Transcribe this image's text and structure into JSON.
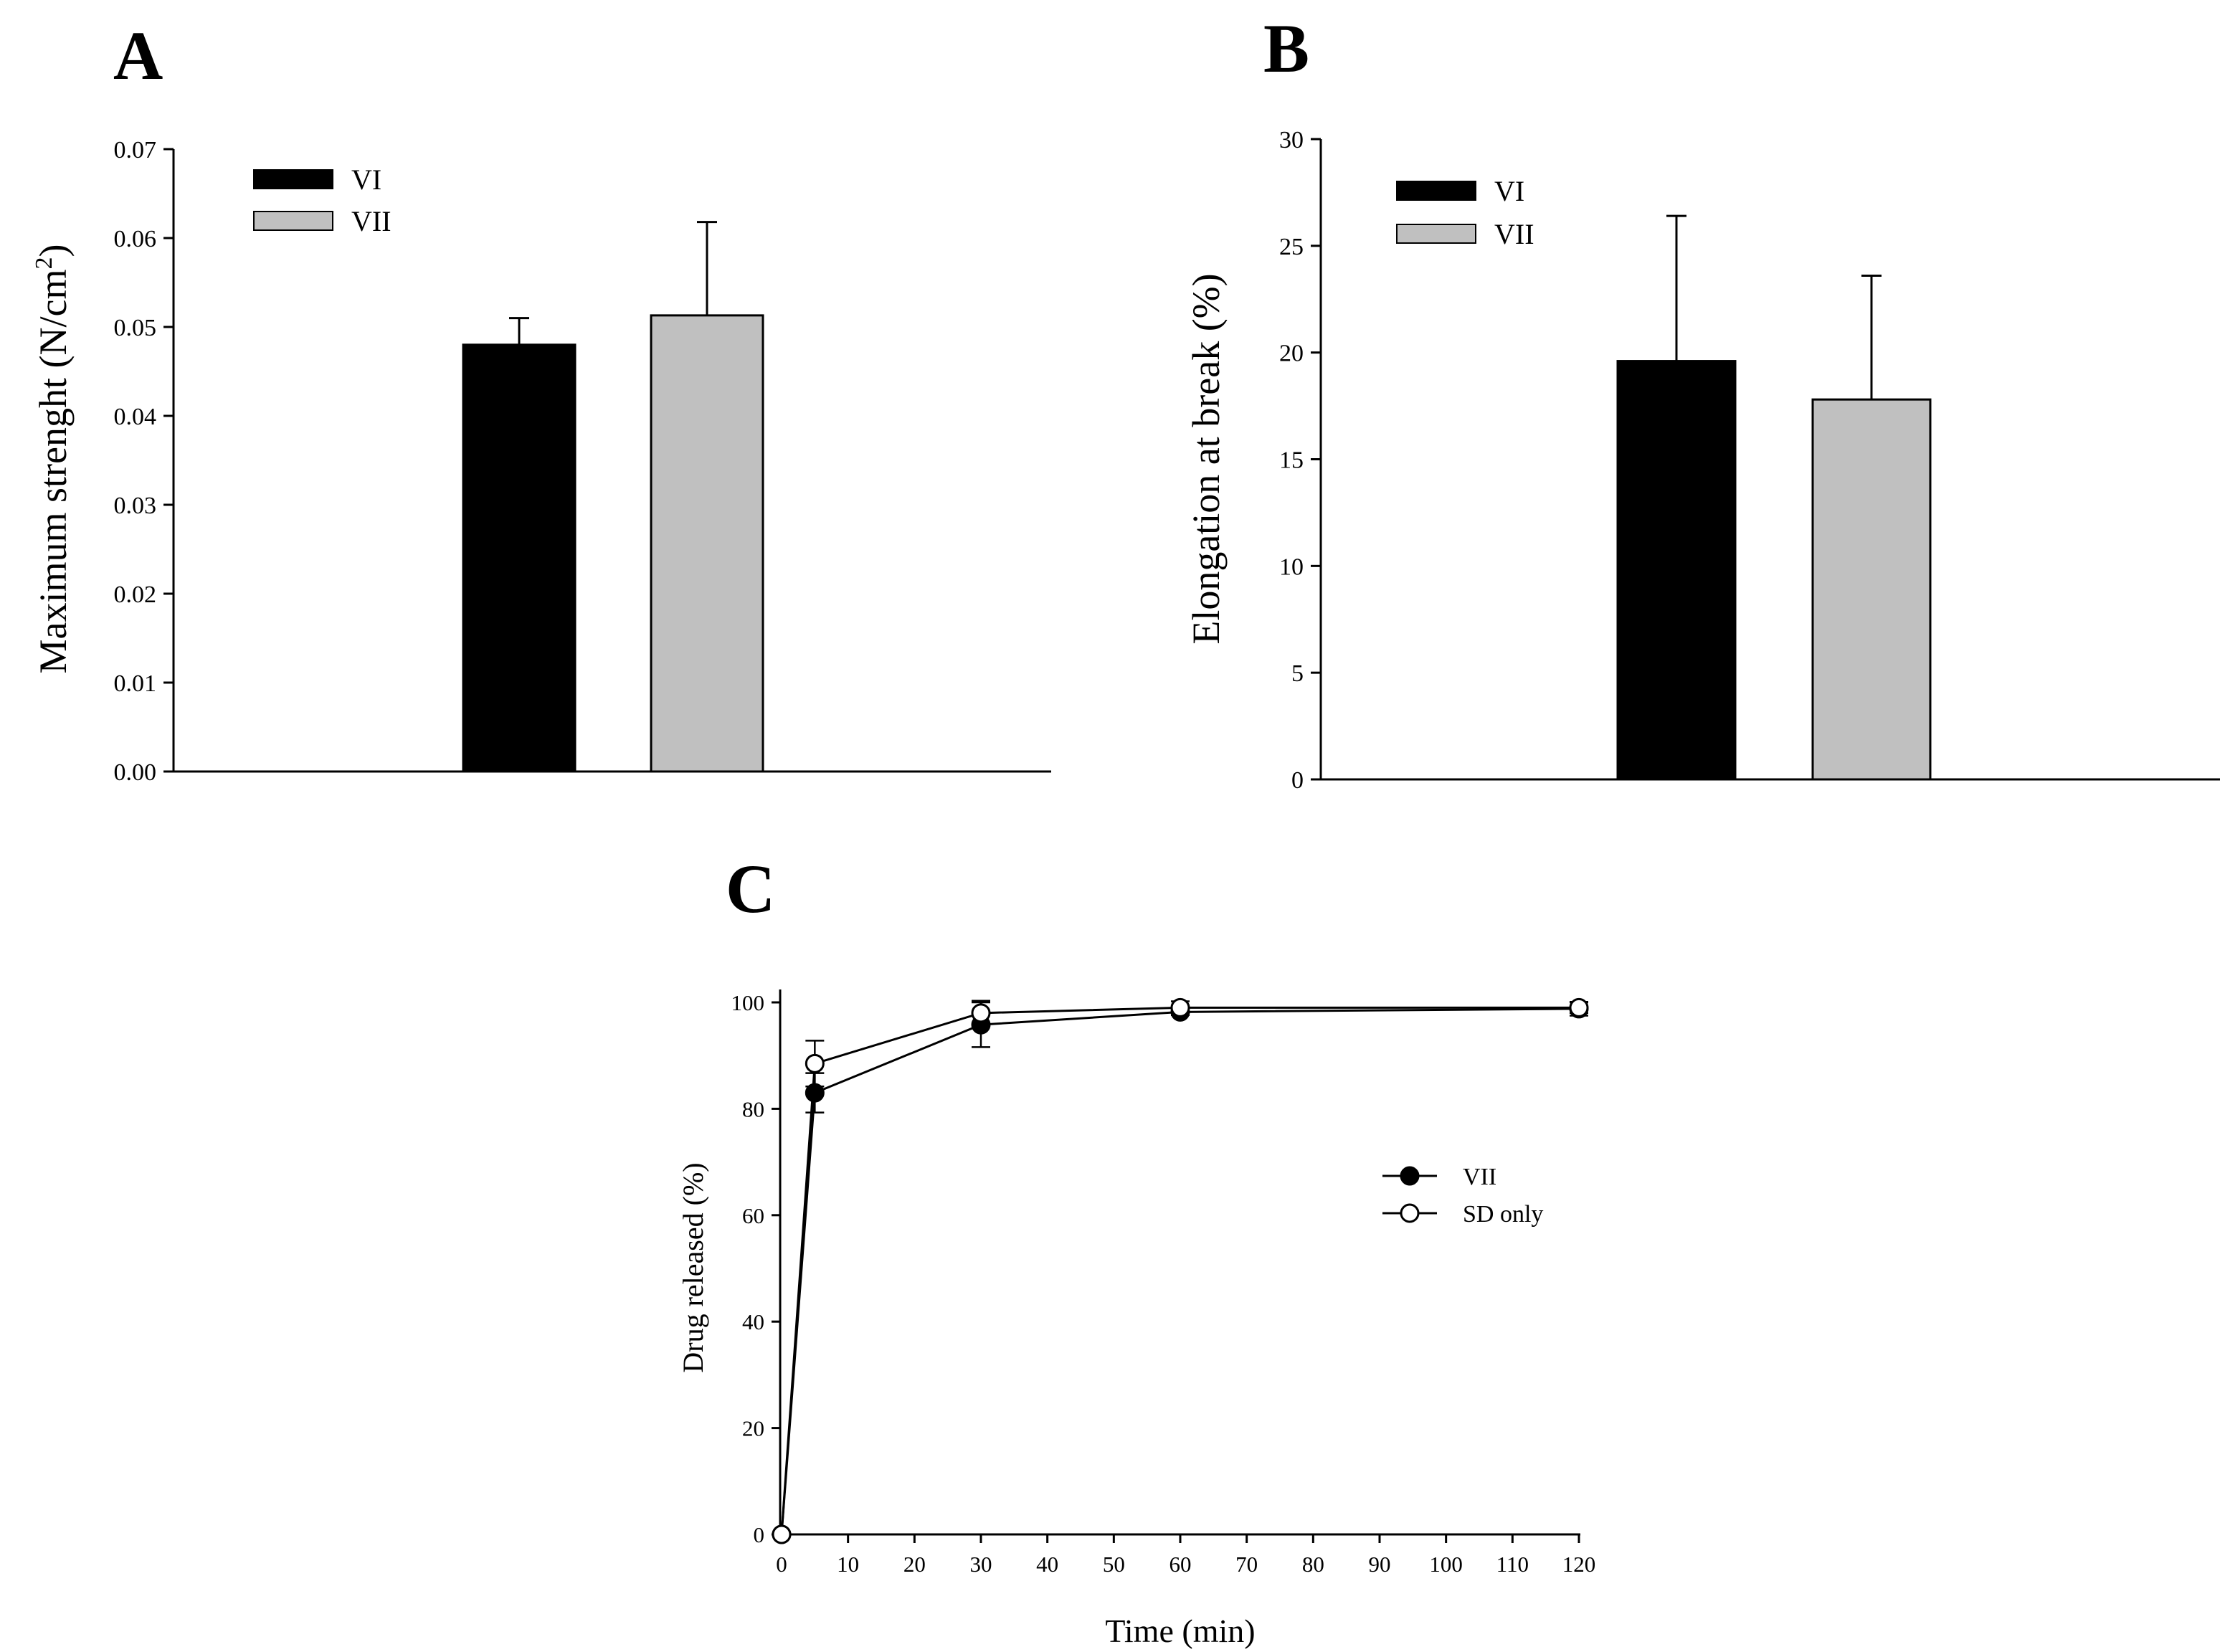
{
  "figure": {
    "panels": [
      {
        "letter": "A",
        "chart_data": {
          "type": "bar",
          "title": "",
          "xlabel": "",
          "ylabel": "Maximum strenght (N/cm²)",
          "ylabel_main": "Maximum strenght (N/cm",
          "ylabel_sup": "2",
          "ylabel_close": ")",
          "ylim": [
            0,
            0.07
          ],
          "yticks": [
            "0.00",
            "0.01",
            "0.02",
            "0.03",
            "0.04",
            "0.05",
            "0.06",
            "0.07"
          ],
          "categories": [
            ""
          ],
          "series": [
            {
              "name": "VI",
              "values": [
                0.048
              ],
              "errors": [
                0.003
              ],
              "color": "#000000"
            },
            {
              "name": "VII",
              "values": [
                0.0513
              ],
              "errors": [
                0.0105
              ],
              "color": "#c0c0c0"
            }
          ],
          "legend": "top-left",
          "grid": false
        }
      },
      {
        "letter": "B",
        "chart_data": {
          "type": "bar",
          "title": "",
          "xlabel": "",
          "ylabel": "Elongation at break (%)",
          "ylim": [
            0,
            30
          ],
          "yticks": [
            "0",
            "5",
            "10",
            "15",
            "20",
            "25",
            "30"
          ],
          "categories": [
            ""
          ],
          "series": [
            {
              "name": "VI",
              "values": [
                19.6
              ],
              "errors": [
                6.8
              ],
              "color": "#000000"
            },
            {
              "name": "VII",
              "values": [
                17.8
              ],
              "errors": [
                5.8
              ],
              "color": "#c0c0c0"
            }
          ],
          "legend": "top-left",
          "grid": false
        }
      },
      {
        "letter": "C",
        "chart_data": {
          "type": "line",
          "title": "",
          "xlabel": "Time (min)",
          "ylabel": "Drug released (%)",
          "xlim": [
            0,
            120
          ],
          "ylim": [
            0,
            100
          ],
          "xticks": [
            "0",
            "10",
            "20",
            "30",
            "40",
            "50",
            "60",
            "70",
            "80",
            "90",
            "100",
            "110",
            "120"
          ],
          "yticks": [
            "0",
            "20",
            "40",
            "60",
            "80",
            "100"
          ],
          "x": [
            0,
            5,
            30,
            60,
            120
          ],
          "series": [
            {
              "name": "VII",
              "marker": "filled-circle",
              "y": [
                0,
                83,
                95.8,
                98.2,
                98.8
              ],
              "errors": [
                0,
                3.7,
                4.2,
                0.6,
                1.3
              ]
            },
            {
              "name": "SD only",
              "marker": "open-circle",
              "y": [
                0,
                88.5,
                98,
                99,
                99
              ],
              "errors": [
                0,
                4.3,
                2.3,
                1.2,
                1.0
              ]
            }
          ],
          "legend": "center-right",
          "grid": false
        }
      }
    ]
  }
}
